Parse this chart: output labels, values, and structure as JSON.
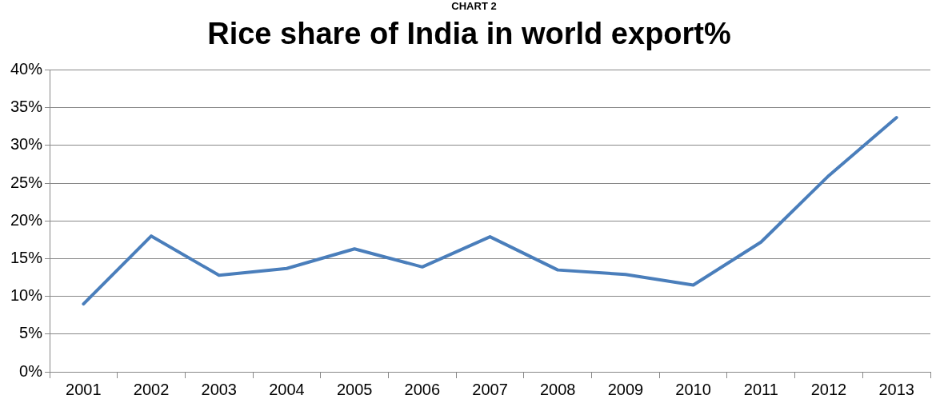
{
  "chart_data": {
    "type": "line",
    "title": "Rice share of India in world export%",
    "annotations": [
      "CHART 2"
    ],
    "categories": [
      "2001",
      "2002",
      "2003",
      "2004",
      "2005",
      "2006",
      "2007",
      "2008",
      "2009",
      "2010",
      "2011",
      "2012",
      "2013"
    ],
    "series": [
      {
        "color": "#4a7ebb",
        "values": [
          9.0,
          18.0,
          12.8,
          13.7,
          16.3,
          13.9,
          17.9,
          13.5,
          12.9,
          11.5,
          17.2,
          26.0,
          33.7
        ]
      }
    ],
    "ylim": [
      0,
      40
    ],
    "yticks": [
      {
        "value": 0,
        "label": "0%"
      },
      {
        "value": 5,
        "label": "5%"
      },
      {
        "value": 10,
        "label": "10%"
      },
      {
        "value": 15,
        "label": "15%"
      },
      {
        "value": 20,
        "label": "20%"
      },
      {
        "value": 25,
        "label": "25%"
      },
      {
        "value": 30,
        "label": "30%"
      },
      {
        "value": 35,
        "label": "35%"
      },
      {
        "value": 40,
        "label": "40%"
      }
    ],
    "grid": "y",
    "legend": false,
    "marker": "none",
    "line_style": "solid"
  }
}
